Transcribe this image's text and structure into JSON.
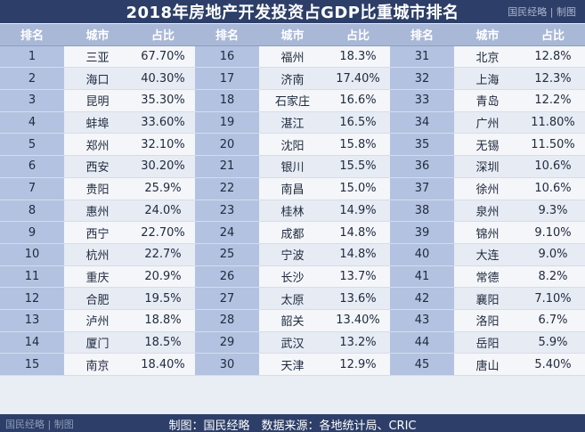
{
  "title": "2018年房地产开发投资占GDP比重城市排名",
  "brand_top": "国民经略 | 制图",
  "brand_bottom": "国民经略 | 制图",
  "watermark": "国民经略",
  "footer_source": "制图：国民经略　数据来源：各地统计局、CRIC",
  "colors": {
    "header_bar": "#2d3f68",
    "column_header": "#a9b8d6",
    "rank_cell": "#b3c2e0"
  },
  "columns": [
    "排名",
    "城市",
    "占比"
  ],
  "chart_data": {
    "type": "table",
    "columns": [
      "排名",
      "城市",
      "占比"
    ],
    "rows": [
      {
        "rank": "1",
        "city": "三亚",
        "share": "67.70%"
      },
      {
        "rank": "2",
        "city": "海口",
        "share": "40.30%"
      },
      {
        "rank": "3",
        "city": "昆明",
        "share": "35.30%"
      },
      {
        "rank": "4",
        "city": "蚌埠",
        "share": "33.60%"
      },
      {
        "rank": "5",
        "city": "郑州",
        "share": "32.10%"
      },
      {
        "rank": "6",
        "city": "西安",
        "share": "30.20%"
      },
      {
        "rank": "7",
        "city": "贵阳",
        "share": "25.9%"
      },
      {
        "rank": "8",
        "city": "惠州",
        "share": "24.0%"
      },
      {
        "rank": "9",
        "city": "西宁",
        "share": "22.70%"
      },
      {
        "rank": "10",
        "city": "杭州",
        "share": "22.7%"
      },
      {
        "rank": "11",
        "city": "重庆",
        "share": "20.9%"
      },
      {
        "rank": "12",
        "city": "合肥",
        "share": "19.5%"
      },
      {
        "rank": "13",
        "city": "泸州",
        "share": "18.8%"
      },
      {
        "rank": "14",
        "city": "厦门",
        "share": "18.5%"
      },
      {
        "rank": "15",
        "city": "南京",
        "share": "18.40%"
      },
      {
        "rank": "16",
        "city": "福州",
        "share": "18.3%"
      },
      {
        "rank": "17",
        "city": "济南",
        "share": "17.40%"
      },
      {
        "rank": "18",
        "city": "石家庄",
        "share": "16.6%"
      },
      {
        "rank": "19",
        "city": "湛江",
        "share": "16.5%"
      },
      {
        "rank": "20",
        "city": "沈阳",
        "share": "15.8%"
      },
      {
        "rank": "21",
        "city": "银川",
        "share": "15.5%"
      },
      {
        "rank": "22",
        "city": "南昌",
        "share": "15.0%"
      },
      {
        "rank": "23",
        "city": "桂林",
        "share": "14.9%"
      },
      {
        "rank": "24",
        "city": "成都",
        "share": "14.8%"
      },
      {
        "rank": "25",
        "city": "宁波",
        "share": "14.8%"
      },
      {
        "rank": "26",
        "city": "长沙",
        "share": "13.7%"
      },
      {
        "rank": "27",
        "city": "太原",
        "share": "13.6%"
      },
      {
        "rank": "28",
        "city": "韶关",
        "share": "13.40%"
      },
      {
        "rank": "29",
        "city": "武汉",
        "share": "13.2%"
      },
      {
        "rank": "30",
        "city": "天津",
        "share": "12.9%"
      },
      {
        "rank": "31",
        "city": "北京",
        "share": "12.8%"
      },
      {
        "rank": "32",
        "city": "上海",
        "share": "12.3%"
      },
      {
        "rank": "33",
        "city": "青岛",
        "share": "12.2%"
      },
      {
        "rank": "34",
        "city": "广州",
        "share": "11.80%"
      },
      {
        "rank": "35",
        "city": "无锡",
        "share": "11.50%"
      },
      {
        "rank": "36",
        "city": "深圳",
        "share": "10.6%"
      },
      {
        "rank": "37",
        "city": "徐州",
        "share": "10.6%"
      },
      {
        "rank": "38",
        "city": "泉州",
        "share": "9.3%"
      },
      {
        "rank": "39",
        "city": "锦州",
        "share": "9.10%"
      },
      {
        "rank": "40",
        "city": "大连",
        "share": "9.0%"
      },
      {
        "rank": "41",
        "city": "常德",
        "share": "8.2%"
      },
      {
        "rank": "42",
        "city": "襄阳",
        "share": "7.10%"
      },
      {
        "rank": "43",
        "city": "洛阳",
        "share": "6.7%"
      },
      {
        "rank": "44",
        "city": "岳阳",
        "share": "5.9%"
      },
      {
        "rank": "45",
        "city": "唐山",
        "share": "5.40%"
      }
    ]
  }
}
